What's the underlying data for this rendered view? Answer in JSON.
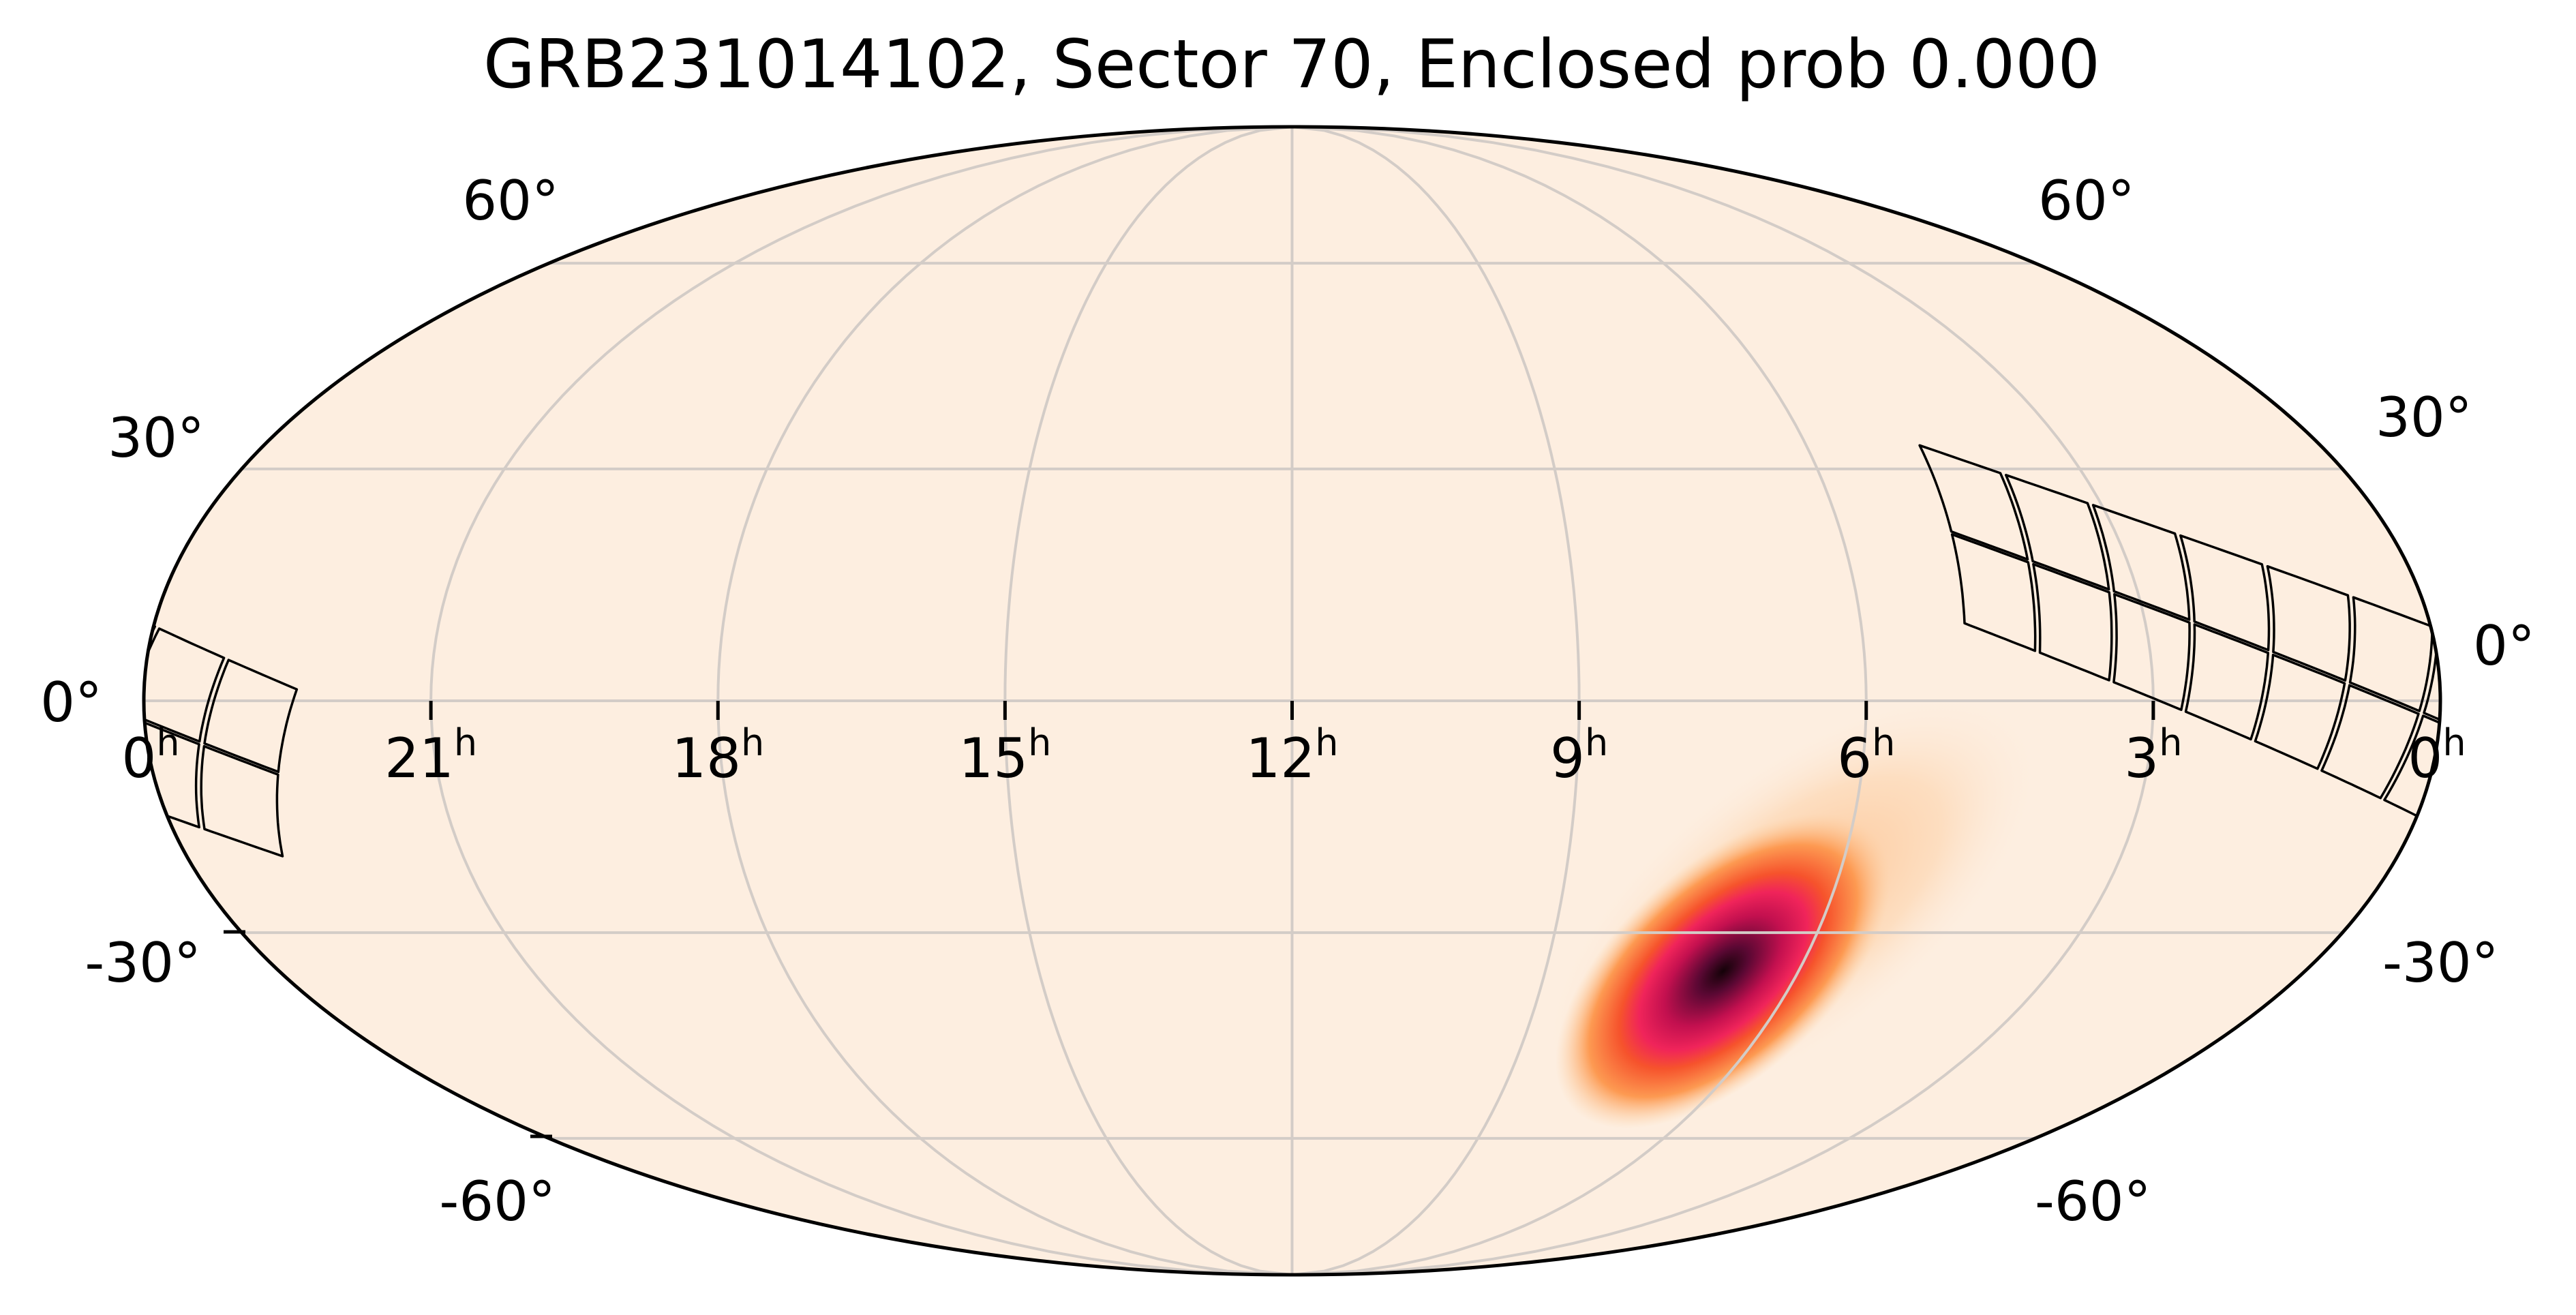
{
  "chart_data": {
    "type": "heatmap",
    "projection": "mollweide",
    "title": "GRB231014102, Sector 70, Enclosed prob 0.000",
    "background_color": "#fdeee0",
    "grid": true,
    "grid_color": "#d3ccc7",
    "ra_grid_hours": [
      3,
      6,
      9,
      12,
      15,
      18,
      21
    ],
    "dec_grid_degrees": [
      -60,
      -30,
      0,
      30,
      60
    ],
    "ra_tick_labels": [
      {
        "ra_h": 24,
        "num": "0",
        "sup": "h"
      },
      {
        "ra_h": 21,
        "num": "21",
        "sup": "h"
      },
      {
        "ra_h": 18,
        "num": "18",
        "sup": "h"
      },
      {
        "ra_h": 15,
        "num": "15",
        "sup": "h"
      },
      {
        "ra_h": 12,
        "num": "12",
        "sup": "h"
      },
      {
        "ra_h": 9,
        "num": "9",
        "sup": "h"
      },
      {
        "ra_h": 6,
        "num": "6",
        "sup": "h"
      },
      {
        "ra_h": 3,
        "num": "3",
        "sup": "h"
      },
      {
        "ra_h": 0,
        "num": "0",
        "sup": "h"
      }
    ],
    "dec_tick_labels_left": [
      "60°",
      "30°",
      "0°",
      "-30°",
      "-60°"
    ],
    "dec_tick_labels_right": [
      "60°",
      "30°",
      "0°",
      "-30°",
      "-60°"
    ],
    "probability_peak": {
      "ra_deg": 105,
      "dec_deg": -36.6
    },
    "colormap": [
      "#fdeee0",
      "#fdd0a2",
      "#fd9a52",
      "#f4502d",
      "#e2135a",
      "#7a0a40",
      "#140208"
    ],
    "footprint": {
      "corners_ra_dec": {
        "top_start": [
          70.5,
          33.5
        ],
        "bottom_start": [
          74.0,
          9.8
        ],
        "top_end": [
          -24.4,
          1.5
        ],
        "bottom_end": [
          -15.9,
          -20.2
        ]
      },
      "columns": 8,
      "rows": 2
    }
  }
}
